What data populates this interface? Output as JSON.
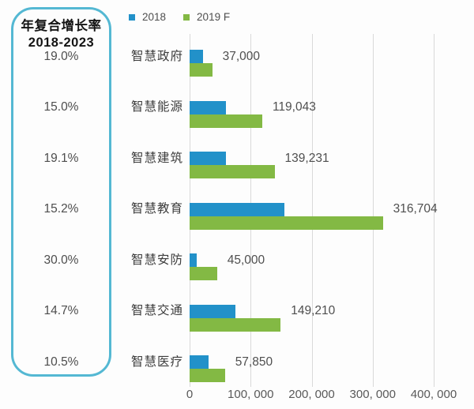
{
  "cagr_box": {
    "title_line1": "年复合增长率",
    "title_line2": "2018-2023",
    "border_color": "#54b8d3",
    "values": [
      "19.0%",
      "15.0%",
      "19.1%",
      "15.2%",
      "30.0%",
      "14.7%",
      "10.5%"
    ]
  },
  "legend": {
    "items": [
      {
        "label": "2018",
        "color": "#2291c9"
      },
      {
        "label": "2019 F",
        "color": "#83b944"
      }
    ]
  },
  "chart_data": {
    "type": "bar",
    "orientation": "horizontal",
    "title": "",
    "categories": [
      "智慧政府",
      "智慧能源",
      "智慧建筑",
      "智慧教育",
      "智慧安防",
      "智慧交通",
      "智慧医疗"
    ],
    "series": [
      {
        "name": "2018",
        "color": "#2291c9",
        "estimated": true,
        "values": [
          22000,
          60000,
          59000,
          155000,
          12000,
          75000,
          31000
        ]
      },
      {
        "name": "2019 F",
        "color": "#83b944",
        "estimated": false,
        "values": [
          37000,
          119043,
          139231,
          316704,
          45000,
          149210,
          57850
        ]
      }
    ],
    "value_labels": [
      "37,000",
      "119,043",
      "139,231",
      "316,704",
      "45,000",
      "149,210",
      "57,850"
    ],
    "cagr_2018_2023": [
      "19.0%",
      "15.0%",
      "19.1%",
      "15.2%",
      "30.0%",
      "14.7%",
      "10.5%"
    ],
    "x_axis": {
      "min": 0,
      "max": 400000,
      "ticks": [
        0,
        100000,
        200000,
        300000,
        400000
      ],
      "tick_labels": [
        "0",
        "100, 000",
        "200, 000",
        "300, 000",
        "400, 000"
      ]
    },
    "grid": true,
    "legend_position": "top"
  }
}
